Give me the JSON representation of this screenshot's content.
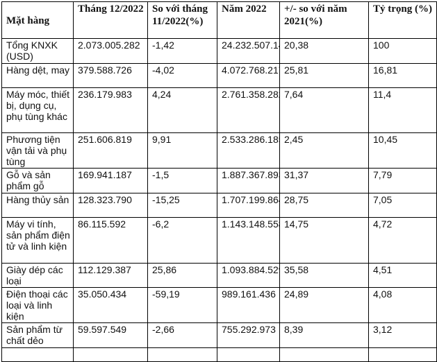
{
  "table": {
    "headers": [
      "Mặt hàng",
      "Tháng 12/2022",
      "So với tháng 11/2022(%)",
      "Năm 2022",
      "+/- so với năm 2021(%)",
      "Tỷ trọng (%)"
    ],
    "rows": [
      [
        "Tổng KNXK (USD)",
        "2.073.005.282",
        "-1,42",
        "24.232.507.143",
        "20,38",
        "100"
      ],
      [
        "Hàng dệt, may",
        "379.588.726",
        "-4,02",
        "4.072.768.217",
        "25,81",
        "16,81"
      ],
      [
        "Máy móc, thiết bị, dụng cụ, phụ tùng khác",
        "236.179.983",
        "4,24",
        "2.761.358.282",
        "7,64",
        "11,4"
      ],
      [
        "Phương tiện vận tải và phụ tùng",
        "251.606.819",
        "9,91",
        "2.533.286.185",
        "2,45",
        "10,45"
      ],
      [
        "Gỗ và sản phẩm gỗ",
        "169.941.187",
        "-1,5",
        "1.887.367.893",
        "31,37",
        "7,79"
      ],
      [
        "Hàng thủy sản",
        "128.323.790",
        "-15,25",
        "1.707.199.864",
        "28,75",
        "7,05"
      ],
      [
        "Máy vi tính, sản phẩm điện tử và linh kiện",
        "86.115.592",
        "-6,2",
        "1.143.148.558",
        "14,75",
        "4,72"
      ],
      [
        "Giày dép các loại",
        "112.129.387",
        "25,86",
        "1.093.884.529",
        "35,58",
        "4,51"
      ],
      [
        "Điện thoại các loại và linh kiện",
        "35.050.434",
        "-59,19",
        "989.161.436",
        "24,89",
        "4,08"
      ],
      [
        "Sản phẩm từ chất dẻo",
        "59.597.549",
        "-2,66",
        "755.292.973",
        "8,39",
        "3,12"
      ]
    ]
  }
}
